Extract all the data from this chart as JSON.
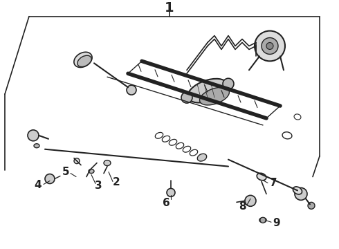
{
  "bg_color": "#ffffff",
  "line_color": "#222222",
  "fig_width": 4.9,
  "fig_height": 3.6,
  "dpi": 100,
  "label_1": "1",
  "label_2": "2",
  "label_3": "3",
  "label_4": "4",
  "label_5": "5",
  "label_6": "6",
  "label_7": "7",
  "label_8": "8",
  "label_9": "9",
  "title_fontsize": 14,
  "callout_fontsize": 11
}
